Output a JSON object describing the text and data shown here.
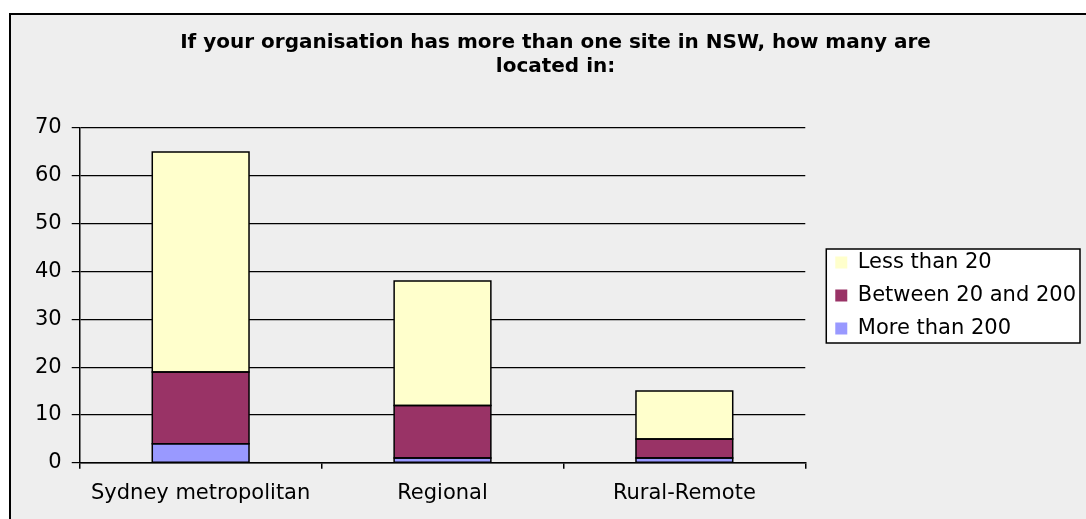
{
  "chart_data": {
    "type": "bar",
    "title": "If your organisation has more than one site in NSW, how many are located in:",
    "categories": [
      "Sydney metropolitan",
      "Regional",
      "Rural-Remote"
    ],
    "stacked": true,
    "series": [
      {
        "name": "More than 200",
        "color": "#9999ff",
        "values": [
          4,
          1,
          1
        ]
      },
      {
        "name": "Between 20 and 200",
        "color": "#993366",
        "values": [
          15,
          11,
          4
        ]
      },
      {
        "name": "Less than 20",
        "color": "#ffffcc",
        "values": [
          46,
          26,
          10
        ]
      }
    ],
    "ylim": [
      0,
      70
    ],
    "yticks": [
      0,
      10,
      20,
      30,
      40,
      50,
      60,
      70
    ],
    "grid": "y",
    "legend": "right"
  }
}
